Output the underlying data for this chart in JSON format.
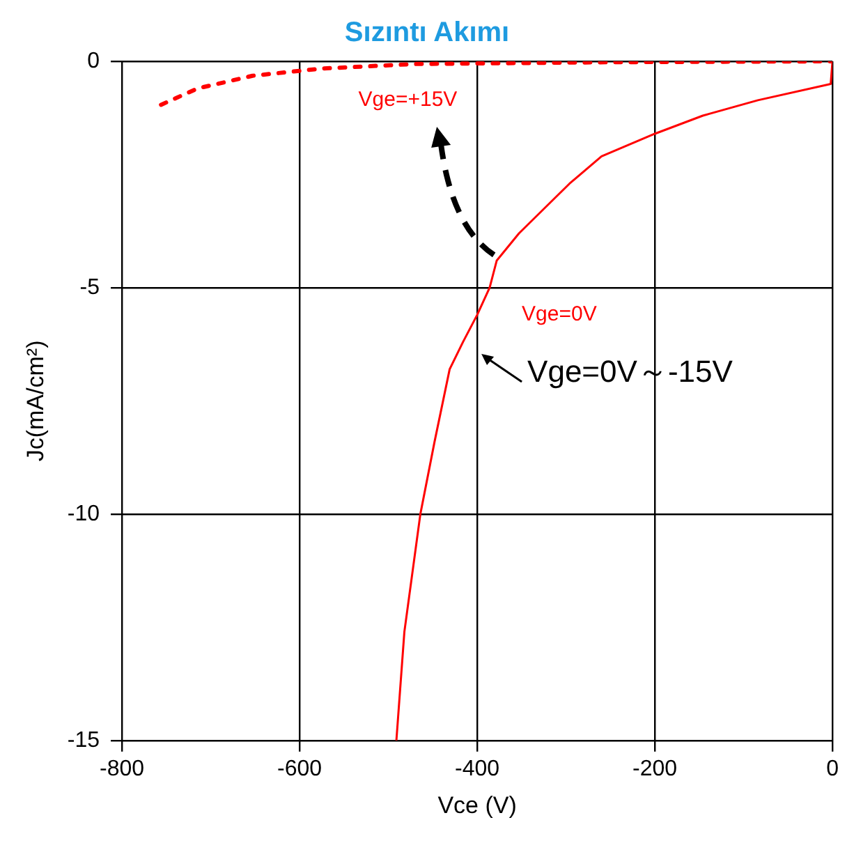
{
  "chart_data": {
    "type": "line",
    "title": "Sızıntı Akımı",
    "xlabel": "Vce (V)",
    "ylabel": "Jc(mA/cm²)",
    "series": [
      {
        "name": "Vge=+15V",
        "color": "#ff0000",
        "line_style": "dotted",
        "x": [
          -756,
          -715,
          -653,
          -575,
          -471,
          -250,
          0
        ],
        "values": [
          -0.96,
          -0.6,
          -0.32,
          -0.16,
          -0.06,
          -0.02,
          0
        ]
      },
      {
        "name": "Vge=0V",
        "color": "#ff0000",
        "line_style": "solid",
        "x": [
          -491,
          -482,
          -464,
          -448,
          -431,
          -416,
          -400,
          -386,
          -378,
          -353,
          -296,
          -260,
          -200,
          -146,
          -84,
          -2,
          0
        ],
        "values": [
          -15,
          -12.6,
          -10,
          -8.4,
          -6.8,
          -6.2,
          -5.6,
          -5,
          -4.4,
          -3.8,
          -2.7,
          -2.1,
          -1.6,
          -1.2,
          -0.86,
          -0.5,
          0
        ]
      }
    ],
    "annotations": [
      "Vge=0V～-15V"
    ],
    "xlim": [
      -800,
      0
    ],
    "xticks": [
      -800,
      -600,
      -400,
      -200,
      0
    ],
    "ylim": [
      -15,
      0
    ],
    "yticks": [
      -15,
      -10,
      -5,
      0
    ],
    "grid": true,
    "legend": false,
    "marker": "none"
  }
}
